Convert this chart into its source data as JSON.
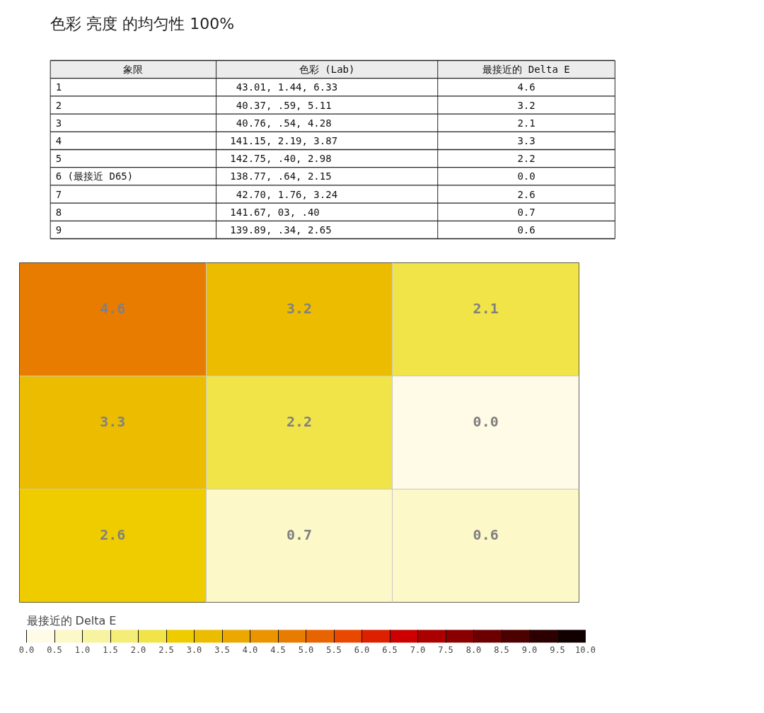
{
  "chart_data": [
    {
      "type": "other",
      "title": "色彩 亮度 的均匀性 100%",
      "annotations": [
        "象限",
        "色彩 (Lab)",
        "最接近的 Delta E",
        "1",
        "43.01,    1.44,    6.33",
        "4.6",
        "2",
        "40.37,     .59,    5.11",
        "3.2",
        "3",
        "40.76,     .54,    4.28",
        "2.1",
        "4",
        "141.15,    2.19,    3.87",
        "3.3",
        "5",
        "142.75,     .40,    2.98",
        "2.2",
        "6 (最接近 D65)",
        "138.77,     .64,    2.15",
        "0.0",
        "7",
        "42.70,    1.76,    3.24",
        "2.6",
        "8",
        "141.67,      03,     .40",
        "0.7",
        "9",
        "139.89,     .34,    2.65",
        "0.6"
      ]
    },
    {
      "type": "heatmap",
      "clabel": "最接近的 Delta E",
      "categories": [
        null,
        null,
        null
      ],
      "y_categories": [
        null,
        null,
        null
      ],
      "cells": [
        [
          4.6,
          3.2,
          2.1
        ],
        [
          3.3,
          2.2,
          0.0
        ],
        [
          2.6,
          0.7,
          0.6
        ]
      ],
      "cell_labels": [
        [
          "4.6",
          "3.2",
          "2.1"
        ],
        [
          "3.3",
          "2.2",
          "0.0"
        ],
        [
          "2.6",
          "0.7",
          "0.6"
        ]
      ],
      "clim": [
        0,
        10
      ],
      "cticks": [
        {
          "value": 0,
          "label": "0.0"
        },
        {
          "value": 0.5,
          "label": "0.5"
        },
        {
          "value": 1,
          "label": "1.0"
        },
        {
          "value": 1.5,
          "label": "1.5"
        },
        {
          "value": 2,
          "label": "2.0"
        },
        {
          "value": 2.5,
          "label": "2.5"
        },
        {
          "value": 3,
          "label": "3.0"
        },
        {
          "value": 3.5,
          "label": "3.5"
        },
        {
          "value": 4,
          "label": "4.0"
        },
        {
          "value": 4.5,
          "label": "4.5"
        },
        {
          "value": 5,
          "label": "5.0"
        },
        {
          "value": 5.5,
          "label": "5.5"
        },
        {
          "value": 6,
          "label": "6.0"
        },
        {
          "value": 6.5,
          "label": "6.5"
        },
        {
          "value": 7,
          "label": "7.0"
        },
        {
          "value": 7.5,
          "label": "7.5"
        },
        {
          "value": 8,
          "label": "8.0"
        },
        {
          "value": 8.5,
          "label": "8.5"
        },
        {
          "value": 9,
          "label": "9.0"
        },
        {
          "value": 9.5,
          "label": "9.5"
        },
        {
          "value": 10,
          "label": "10.0"
        }
      ]
    }
  ]
}
